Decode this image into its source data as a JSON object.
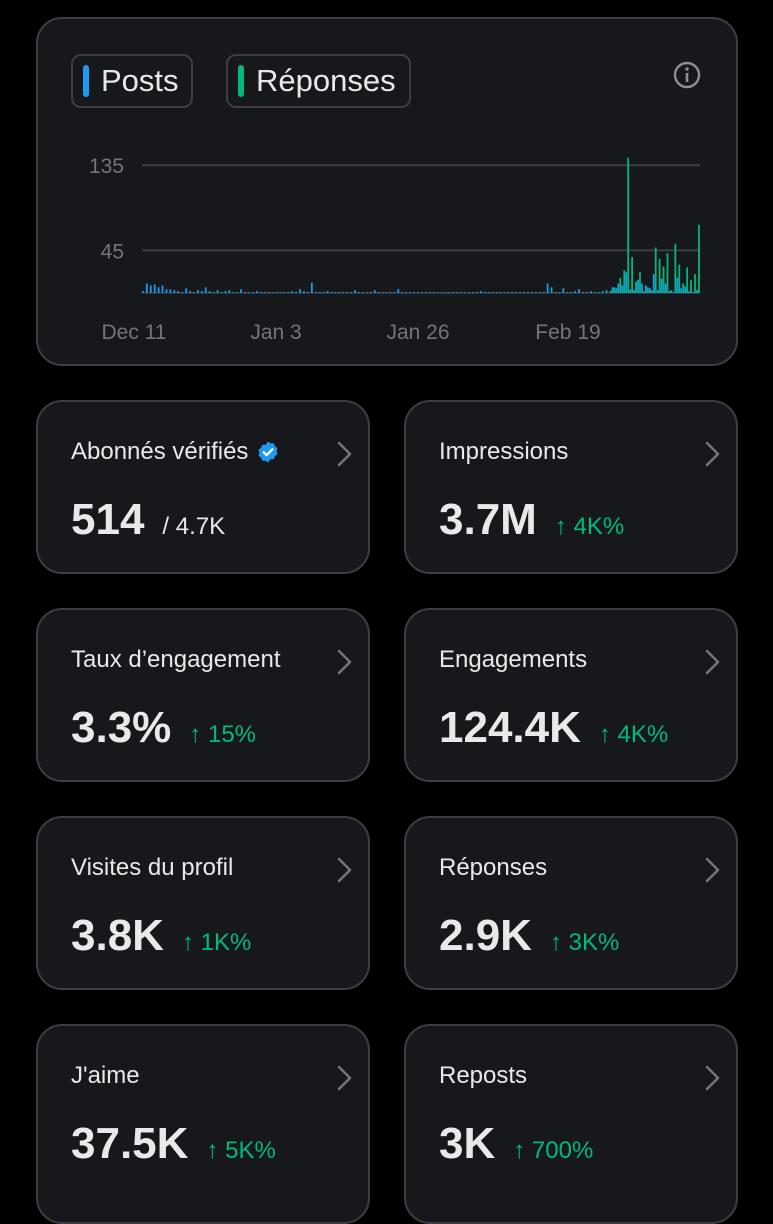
{
  "legend": {
    "posts": "Posts",
    "replies": "Réponses"
  },
  "colors": {
    "posts": "#1d9bf0",
    "replies": "#00ba7c",
    "grid": "#3b3f44"
  },
  "icons": {
    "info": "info-icon",
    "chevron": "chevron-right-icon",
    "verified": "verified-badge-icon"
  },
  "chart_data": {
    "type": "bar",
    "y_ticks": [
      "135",
      "45"
    ],
    "x_ticks": [
      "Dec 11",
      "Jan 3",
      "Jan 26",
      "Feb 19"
    ],
    "ylim": [
      0,
      150
    ],
    "grid": true,
    "series": [
      {
        "name": "Posts",
        "values": [
          2,
          10,
          8,
          9,
          6,
          8,
          4,
          4,
          3,
          2,
          1,
          5,
          2,
          1,
          3,
          2,
          6,
          2,
          1,
          3,
          1,
          2,
          3,
          1,
          1,
          4,
          1,
          1,
          1,
          2,
          1,
          1,
          1,
          1,
          1,
          1,
          1,
          1,
          2,
          1,
          4,
          2,
          1,
          11,
          1,
          1,
          1,
          2,
          1,
          1,
          1,
          1,
          1,
          1,
          3,
          1,
          1,
          1,
          1,
          3,
          1,
          1,
          1,
          1,
          1,
          4,
          1,
          1,
          1,
          1,
          1,
          1,
          1,
          1,
          1,
          1,
          1,
          1,
          1,
          1,
          1,
          1,
          1,
          1,
          1,
          1,
          2,
          1,
          1,
          1,
          1,
          1,
          1,
          1,
          1,
          1,
          1,
          1,
          1,
          1,
          1,
          1,
          1,
          10,
          6,
          1,
          1,
          5,
          1,
          1,
          2,
          4,
          1,
          1,
          2,
          1,
          1,
          2,
          3,
          2,
          6,
          10,
          8,
          22,
          4,
          3,
          14,
          10,
          8,
          5,
          20,
          3,
          15,
          10,
          2,
          1,
          16,
          5,
          7,
          2,
          1,
          3
        ]
      },
      {
        "name": "Réponses",
        "values": [
          0,
          0,
          0,
          0,
          0,
          0,
          0,
          0,
          0,
          0,
          0,
          0,
          0,
          0,
          0,
          0,
          0,
          0,
          0,
          0,
          0,
          0,
          0,
          0,
          0,
          0,
          0,
          0,
          0,
          0,
          0,
          0,
          0,
          0,
          0,
          0,
          0,
          0,
          0,
          0,
          0,
          0,
          0,
          0,
          0,
          0,
          0,
          0,
          0,
          0,
          0,
          0,
          0,
          0,
          0,
          0,
          0,
          0,
          0,
          0,
          0,
          0,
          0,
          0,
          0,
          0,
          0,
          0,
          0,
          0,
          0,
          0,
          0,
          0,
          0,
          0,
          0,
          0,
          0,
          0,
          0,
          0,
          0,
          0,
          0,
          0,
          0,
          0,
          0,
          0,
          0,
          0,
          0,
          0,
          0,
          0,
          0,
          0,
          0,
          0,
          0,
          0,
          0,
          0,
          0,
          0,
          0,
          0,
          0,
          0,
          0,
          0,
          0,
          0,
          0,
          0,
          0,
          0,
          0,
          6,
          5,
          16,
          24,
          143,
          38,
          12,
          22,
          2,
          6,
          3,
          48,
          36,
          28,
          42,
          3,
          52,
          30,
          10,
          27,
          14,
          20,
          72
        ]
      }
    ]
  },
  "stats": {
    "abonnes": {
      "label": "Abonnés vérifiés",
      "value": "514",
      "total": "/ 4.7K"
    },
    "impressions": {
      "label": "Impressions",
      "value": "3.7M",
      "delta": "↑ 4K%"
    },
    "taux": {
      "label": "Taux d’engagement",
      "value": "3.3%",
      "delta": "↑ 15%"
    },
    "engagements": {
      "label": "Engagements",
      "value": "124.4K",
      "delta": "↑ 4K%"
    },
    "visites": {
      "label": "Visites du profil",
      "value": "3.8K",
      "delta": "↑ 1K%"
    },
    "reponses": {
      "label": "Réponses",
      "value": "2.9K",
      "delta": "↑ 3K%"
    },
    "jaime": {
      "label": "J'aime",
      "value": "37.5K",
      "delta": "↑ 5K%"
    },
    "reposts": {
      "label": "Reposts",
      "value": "3K",
      "delta": "↑ 700%"
    }
  }
}
